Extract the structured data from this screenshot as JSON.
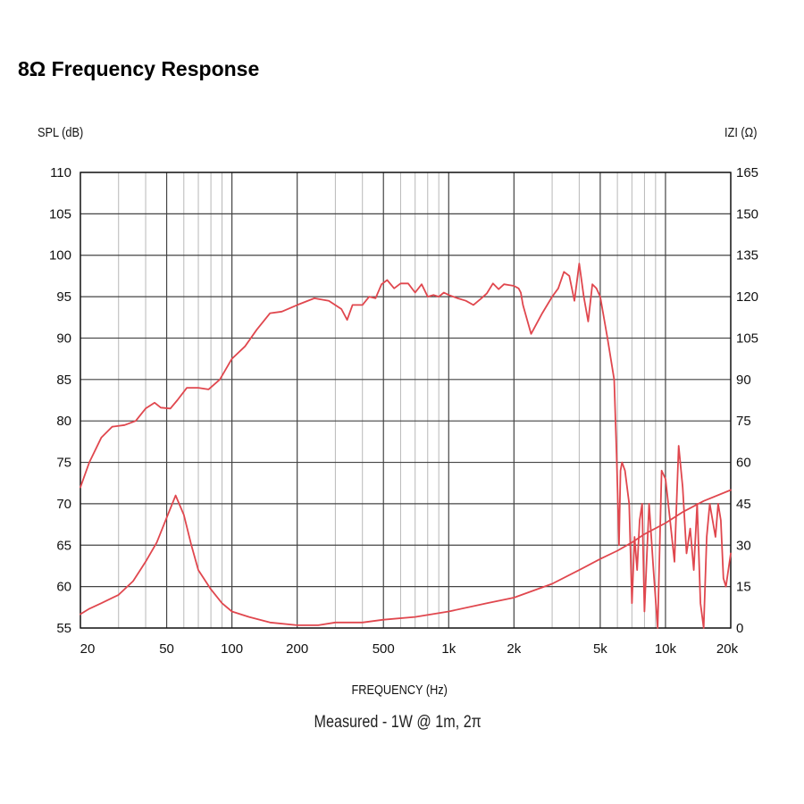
{
  "title": "8Ω Frequency Response",
  "left_axis_unit": "SPL (dB)",
  "right_axis_unit": "IZI (Ω)",
  "x_axis_title": "FREQUENCY (Hz)",
  "caption": "Measured - 1W @ 1m, 2π",
  "colors": {
    "curve": "#e0474e",
    "grid_major": "#444444",
    "grid_minor": "#b8b8b8"
  },
  "chart_data": {
    "type": "line",
    "title": "8Ω Frequency Response",
    "xlabel": "FREQUENCY (Hz)",
    "ylabel": "SPL (dB)",
    "y2label": "IZI (Ω)",
    "x_scale": "log",
    "xlim": [
      20,
      20000
    ],
    "ylim": [
      55,
      110
    ],
    "y2lim": [
      0,
      165
    ],
    "grid": true,
    "x_ticks": [
      20,
      50,
      100,
      200,
      500,
      1000,
      2000,
      5000,
      10000,
      20000
    ],
    "x_tick_labels": [
      "20",
      "50",
      "100",
      "200",
      "500",
      "1k",
      "2k",
      "5k",
      "10k",
      "20k"
    ],
    "y_ticks": [
      55,
      60,
      65,
      70,
      75,
      80,
      85,
      90,
      95,
      100,
      105,
      110
    ],
    "y_tick_labels": [
      "55",
      "60",
      "65",
      "70",
      "75",
      "80",
      "85",
      "90",
      "95",
      "100",
      "105",
      "110"
    ],
    "y2_ticks": [
      0,
      15,
      30,
      45,
      60,
      75,
      90,
      105,
      120,
      135,
      150,
      165
    ],
    "y2_tick_labels": [
      "0",
      "15",
      "30",
      "45",
      "60",
      "75",
      "90",
      "105",
      "120",
      "135",
      "150",
      "165"
    ],
    "series": [
      {
        "axis": "left",
        "x": [
          20,
          22,
          25,
          28,
          32,
          36,
          40,
          44,
          47,
          52,
          56,
          62,
          70,
          78,
          88,
          100,
          115,
          130,
          150,
          170,
          200,
          240,
          280,
          320,
          340,
          360,
          400,
          430,
          460,
          490,
          520,
          560,
          600,
          650,
          700,
          750,
          800,
          850,
          900,
          950,
          1000,
          1100,
          1200,
          1300,
          1400,
          1500,
          1600,
          1700,
          1800,
          1900,
          2000,
          2100,
          2150,
          2200,
          2400,
          2700,
          3000,
          3200,
          3400,
          3600,
          3800,
          4000,
          4200,
          4400,
          4600,
          4800,
          5000,
          5400,
          5800,
          5950,
          6100,
          6200,
          6300,
          6500,
          6800,
          7000,
          7200,
          7400,
          7600,
          7800,
          8000,
          8400,
          8800,
          9200,
          9600,
          10000,
          10500,
          11000,
          11500,
          12000,
          12500,
          13000,
          13500,
          14000,
          14500,
          15000,
          15500,
          16000,
          16500,
          17000,
          17500,
          18000,
          18500,
          19000,
          20000
        ],
        "values": [
          72,
          75,
          78,
          79.3,
          79.5,
          80,
          81.5,
          82.2,
          81.6,
          81.5,
          82.5,
          84,
          84,
          83.8,
          85,
          87.5,
          89,
          91,
          93,
          93.2,
          94,
          94.8,
          94.5,
          93.5,
          92.2,
          94,
          94,
          95,
          94.8,
          96.5,
          97,
          96,
          96.6,
          96.6,
          95.5,
          96.5,
          95,
          95.2,
          95,
          95.5,
          95.2,
          94.8,
          94.5,
          94,
          94.7,
          95.4,
          96.6,
          95.9,
          96.5,
          96.4,
          96.3,
          96,
          95.5,
          94,
          90.5,
          93,
          95,
          96,
          98,
          97.5,
          94.5,
          99,
          95,
          92,
          96.5,
          96,
          95,
          90,
          85,
          76,
          65,
          74,
          75,
          74,
          70,
          58,
          66,
          62,
          68,
          70,
          57,
          70,
          62,
          55,
          74,
          73,
          68,
          63,
          77,
          72,
          64,
          67,
          62,
          70,
          58,
          55,
          66,
          70,
          68,
          66,
          70,
          68,
          61,
          60,
          64
        ]
      },
      {
        "axis": "right",
        "x": [
          20,
          22,
          25,
          30,
          35,
          40,
          45,
          50,
          55,
          60,
          65,
          70,
          80,
          90,
          100,
          120,
          150,
          200,
          250,
          300,
          400,
          500,
          700,
          1000,
          1500,
          2000,
          3000,
          4000,
          5000,
          6000,
          7000,
          8000,
          10000,
          12000,
          15000,
          20000
        ],
        "values": [
          5,
          7,
          9,
          12,
          17,
          24,
          31,
          40,
          48,
          41,
          30,
          21,
          14,
          9,
          6,
          4,
          2,
          1,
          1,
          2,
          2,
          3,
          4,
          6,
          9,
          11,
          16,
          21,
          25,
          28,
          31,
          34,
          38,
          42,
          46,
          50
        ]
      }
    ]
  }
}
